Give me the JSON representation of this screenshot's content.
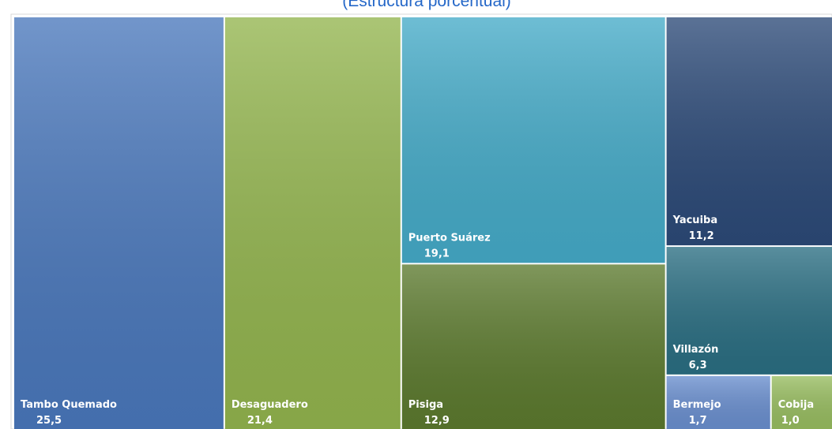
{
  "chart_data": {
    "type": "treemap",
    "title": "(Estructura porcentual)",
    "categories": [
      "Tambo Quemado",
      "Desaguadero",
      "Puerto Suárez",
      "Pisiga",
      "Yacuiba",
      "Villazón",
      "Bermejo",
      "Cobija"
    ],
    "values": [
      25.5,
      21.4,
      19.1,
      12.9,
      11.2,
      6.3,
      1.7,
      1.0
    ],
    "value_labels": [
      "25,5",
      "21,4",
      "19,1",
      "12,9",
      "11,2",
      "6,3",
      "1,7",
      "1,0"
    ],
    "colors": [
      "#4a78bc",
      "#93b54e",
      "#45abc8",
      "#5c7a2e",
      "#2c4a78",
      "#2a6e82",
      "#6a8fcf",
      "#98bd60"
    ]
  }
}
